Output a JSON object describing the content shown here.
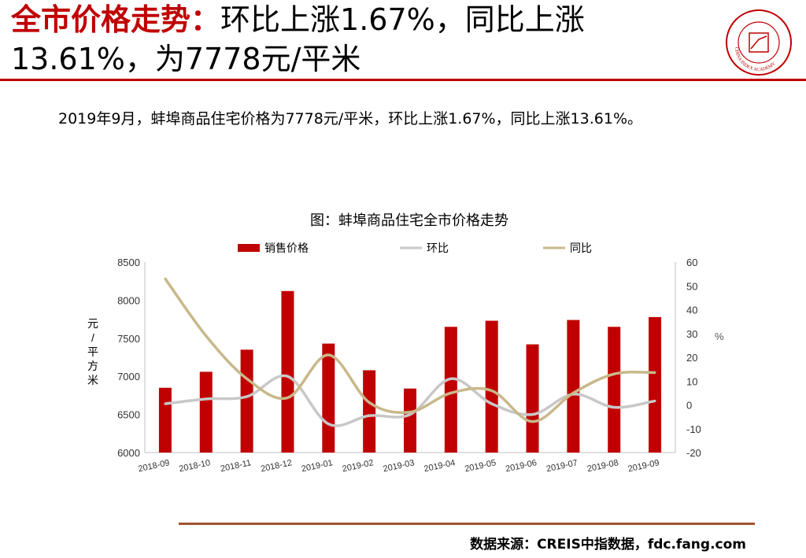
{
  "header": {
    "title_highlight": "全市价格走势：",
    "title_rest": "环比上涨1.67%，同比上涨13.61%，为7778元/平米",
    "logo_text": "CHINA INDEX ACADEMY"
  },
  "summary": "2019年9月，蚌埠商品住宅价格为7778元/平米，环比上涨1.67%，同比上涨13.61%。",
  "source": "数据来源：CREIS中指数据，fdc.fang.com",
  "colors": {
    "bar": "#c00000",
    "mom": "#c8c8c8",
    "yoy": "#c8b88a",
    "accent": "#c00000"
  },
  "chart_data": {
    "type": "bar",
    "title": "图：蚌埠商品住宅全市价格走势",
    "categories": [
      "2018-09",
      "2018-10",
      "2018-11",
      "2018-12",
      "2019-01",
      "2019-02",
      "2019-03",
      "2019-04",
      "2019-05",
      "2019-06",
      "2019-07",
      "2019-08",
      "2019-09"
    ],
    "series": [
      {
        "name": "销售价格",
        "type": "bar",
        "axis": "left",
        "values": [
          6850,
          7060,
          7350,
          8120,
          7430,
          7080,
          6840,
          7650,
          7730,
          7420,
          7740,
          7650,
          7778
        ]
      },
      {
        "name": "环比",
        "type": "line",
        "axis": "right",
        "values": [
          0.5,
          2.5,
          3.5,
          12.0,
          -8.0,
          -4.5,
          -4.0,
          11.0,
          0.5,
          -4.0,
          4.5,
          -1.0,
          1.67
        ]
      },
      {
        "name": "同比",
        "type": "line",
        "axis": "right",
        "values": [
          53,
          29,
          11,
          3,
          21,
          1,
          -3,
          5,
          6,
          -7,
          5,
          13,
          13.61
        ]
      }
    ],
    "ylabel": "元/平方米",
    "y2label": "%",
    "ylim": [
      6000,
      8500
    ],
    "yticks": [
      "8500",
      "8000",
      "7500",
      "7000",
      "6500",
      "6000"
    ],
    "y2lim": [
      -20,
      60
    ],
    "y2ticks": [
      "60",
      "50",
      "40",
      "30",
      "20",
      "10",
      "0",
      "-10",
      "-20"
    ],
    "legend": "top"
  }
}
